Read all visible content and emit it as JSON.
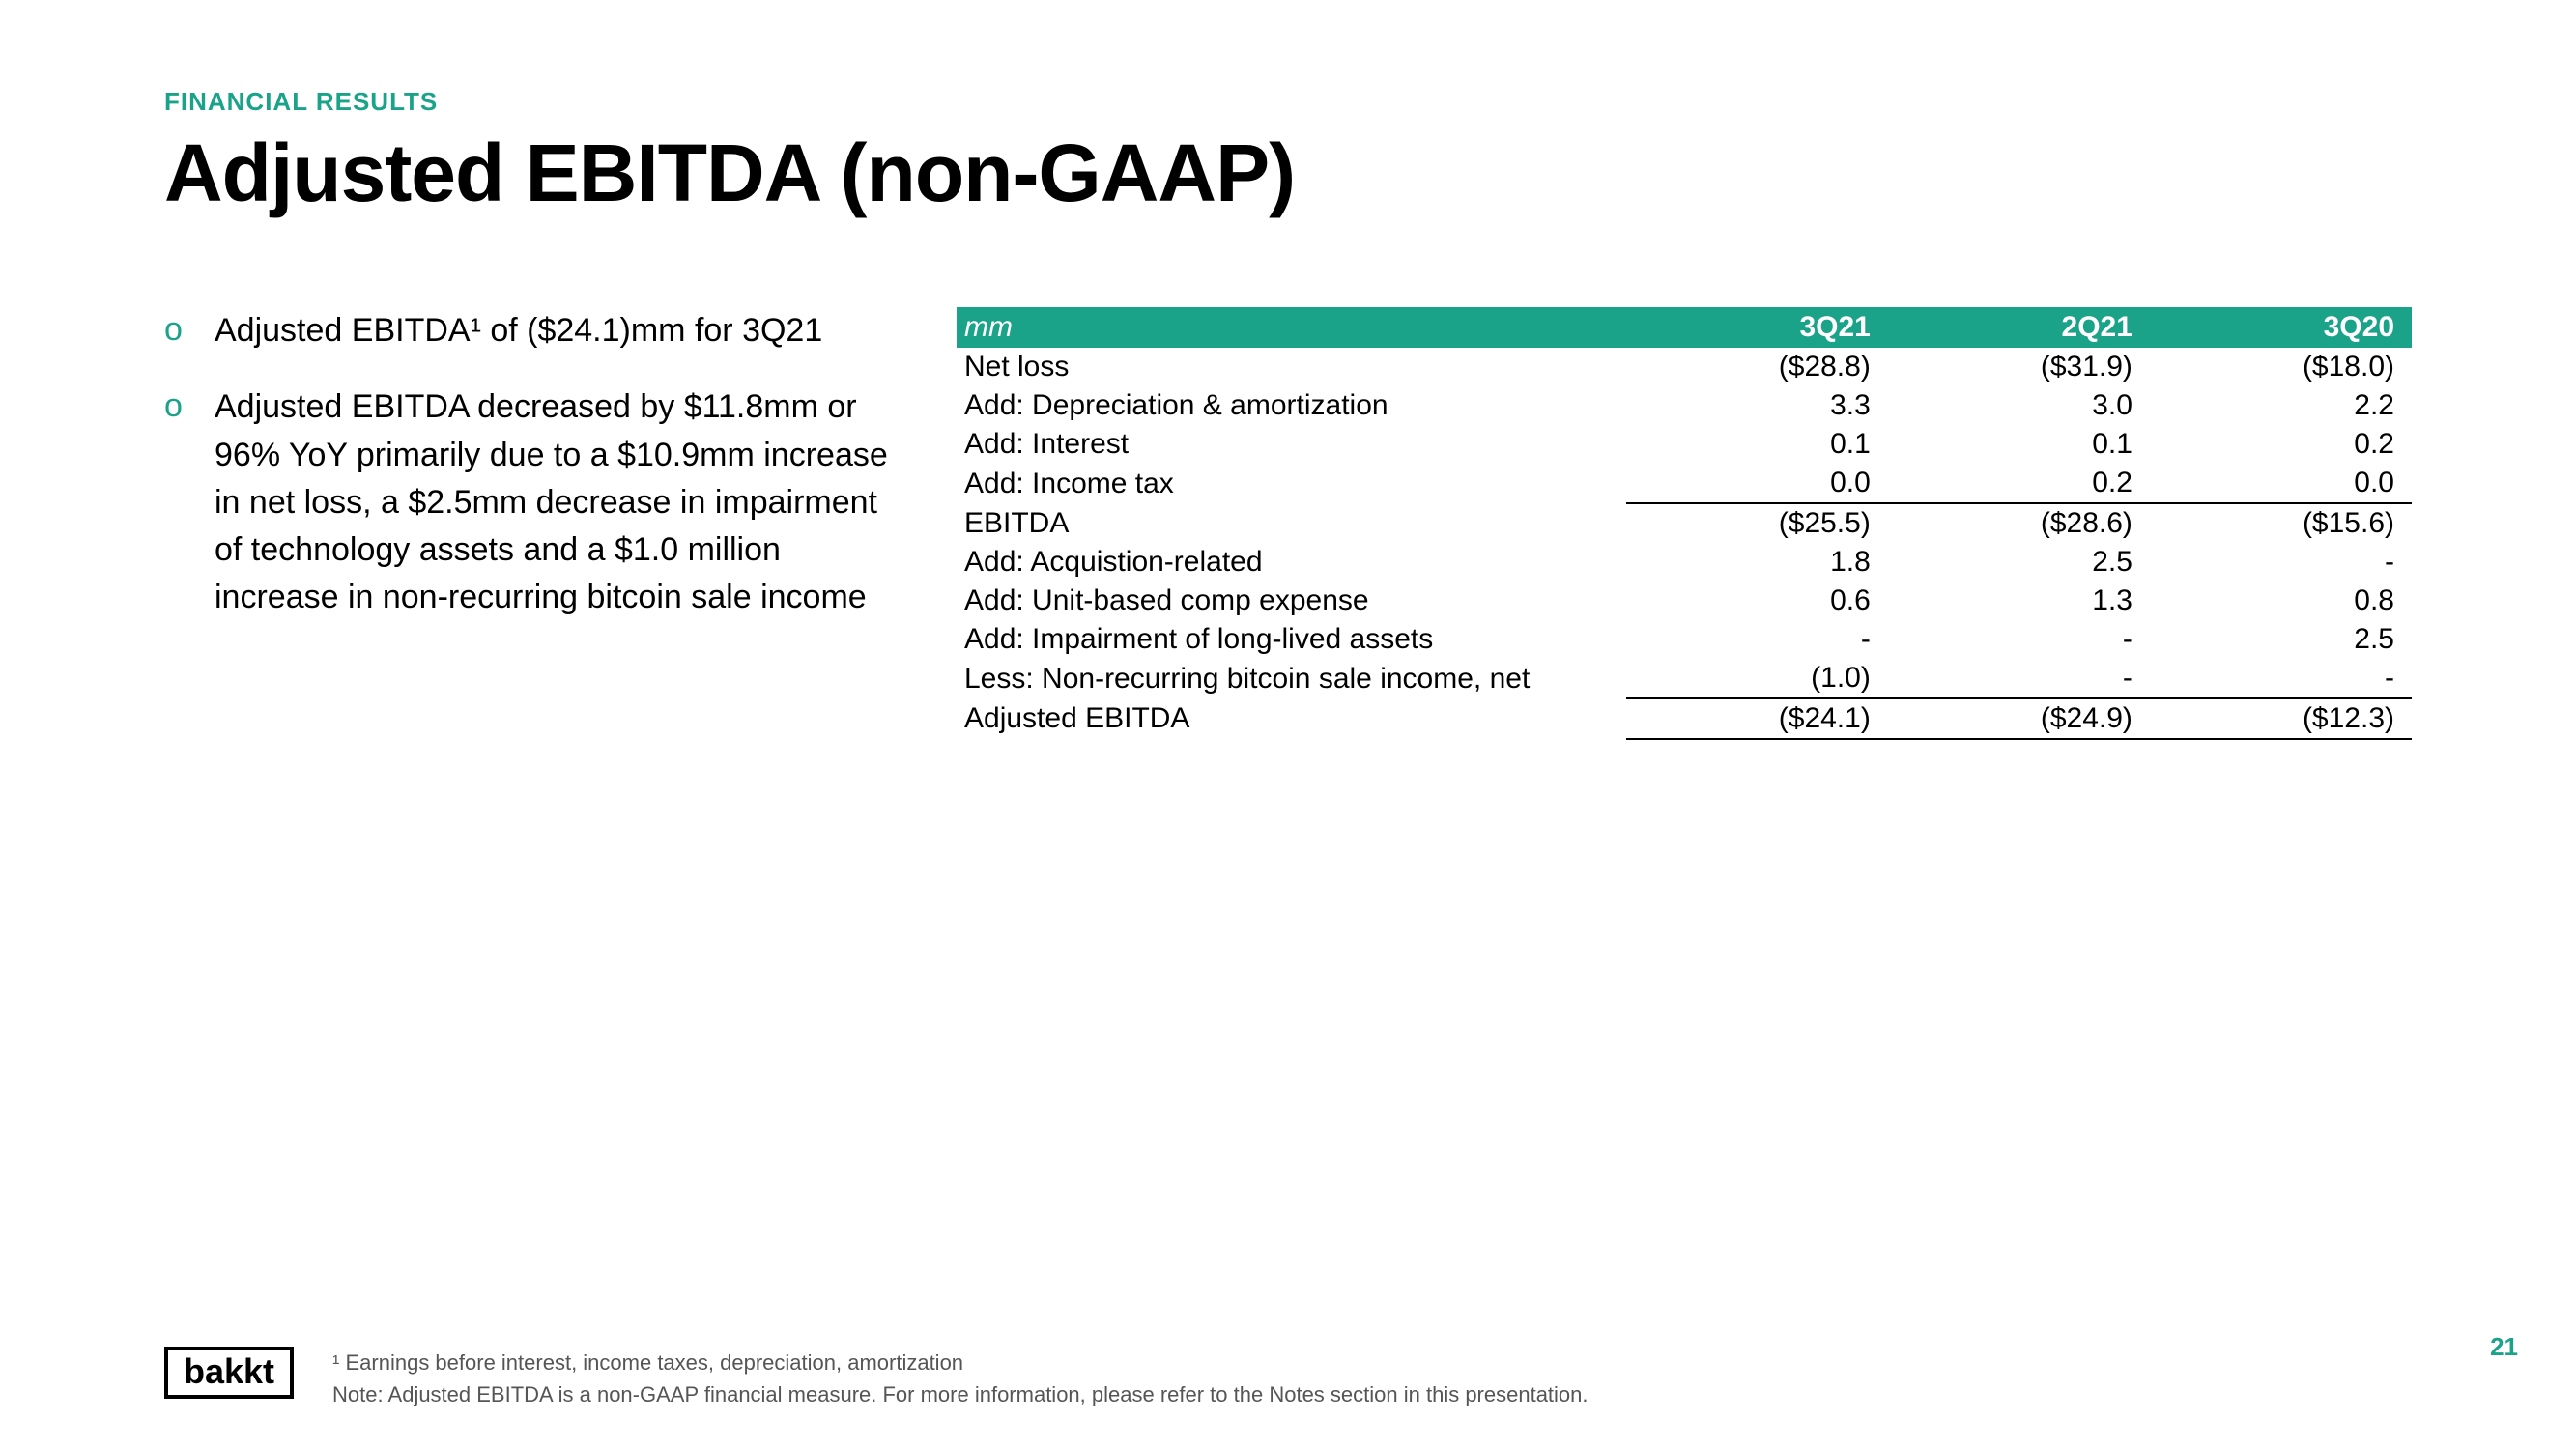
{
  "colors": {
    "accent": "#1aa389",
    "text": "#000000",
    "bg": "#ffffff",
    "muted": "#555555"
  },
  "header": {
    "eyebrow": "FINANCIAL RESULTS",
    "title": "Adjusted EBITDA (non-GAAP)"
  },
  "bullets": [
    "Adjusted EBITDA¹ of ($24.1)mm for 3Q21",
    "Adjusted EBITDA decreased by $11.8mm or 96% YoY primarily due to a $10.9mm increase in net loss, a $2.5mm decrease in impairment of technology assets and a $1.0 million increase in non-recurring bitcoin sale income"
  ],
  "table": {
    "header_label": "mm",
    "columns": [
      "3Q21",
      "2Q21",
      "3Q20"
    ],
    "rows": [
      {
        "label": "Net loss",
        "v": [
          "($28.8)",
          "($31.9)",
          "($18.0)"
        ]
      },
      {
        "label": "Add: Depreciation & amortization",
        "v": [
          "3.3",
          "3.0",
          "2.2"
        ]
      },
      {
        "label": "Add: Interest",
        "v": [
          "0.1",
          "0.1",
          "0.2"
        ]
      },
      {
        "label": "Add: Income tax",
        "v": [
          "0.0",
          "0.2",
          "0.0"
        ]
      },
      {
        "label": "EBITDA",
        "v": [
          "($25.5)",
          "($28.6)",
          "($15.6)"
        ],
        "subtotal": true
      },
      {
        "label": "Add: Acquistion-related",
        "v": [
          "1.8",
          "2.5",
          "-"
        ]
      },
      {
        "label": "Add: Unit-based comp expense",
        "v": [
          "0.6",
          "1.3",
          "0.8"
        ]
      },
      {
        "label": "Add: Impairment of long-lived assets",
        "v": [
          "-",
          "-",
          "2.5"
        ]
      },
      {
        "label": "Less: Non-recurring bitcoin sale income, net",
        "v": [
          "(1.0)",
          "-",
          "-"
        ]
      },
      {
        "label": "Adjusted EBITDA",
        "v": [
          "($24.1)",
          "($24.9)",
          "($12.3)"
        ],
        "total": true
      }
    ]
  },
  "footer": {
    "logo": "bakkt",
    "footnote1": "¹ Earnings before interest, income taxes, depreciation, amortization",
    "footnote2": "Note: Adjusted EBITDA is a non-GAAP financial measure. For more information, please refer to the Notes section in this presentation.",
    "page": "21"
  }
}
